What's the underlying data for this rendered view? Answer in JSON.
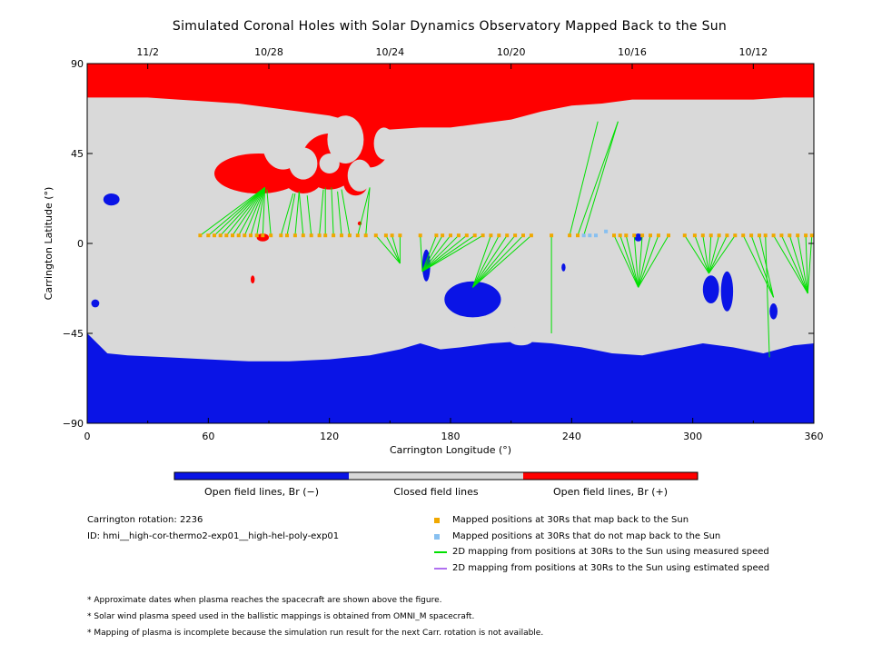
{
  "title": "Simulated Coronal Holes with Solar Dynamics Observatory Mapped Back to the Sun",
  "colors": {
    "open_negative": "#0a14e6",
    "closed": "#d9d9d9",
    "open_positive": "#ff0000",
    "mapped_yes": "#f0a800",
    "mapped_no": "#88c0f0",
    "measured_speed": "#00e000",
    "estimated_speed": "#b070f0"
  },
  "chart_data": {
    "type": "heatmap",
    "title": "Simulated Coronal Holes with Solar Dynamics Observatory Mapped Back to the Sun",
    "xlabel": "Carrington Longitude (°)",
    "ylabel": "Carrington Latitude (°)",
    "xlim": [
      0,
      360
    ],
    "ylim": [
      -90,
      90
    ],
    "xticks": [
      0,
      60,
      120,
      180,
      240,
      300,
      360
    ],
    "yticks": [
      90,
      45,
      0,
      -45,
      -90
    ],
    "top_axis_dates": [
      {
        "label": "11/2",
        "lon": 30
      },
      {
        "label": "10/28",
        "lon": 90
      },
      {
        "label": "10/24",
        "lon": 150
      },
      {
        "label": "10/20",
        "lon": 210
      },
      {
        "label": "10/16",
        "lon": 270
      },
      {
        "label": "10/12",
        "lon": 330
      }
    ],
    "colorbar": [
      "Open field lines, Br (−)",
      "Closed field lines",
      "Open field lines, Br (+)"
    ],
    "north_boundary": [
      [
        0,
        73
      ],
      [
        15,
        73
      ],
      [
        30,
        73
      ],
      [
        45,
        72
      ],
      [
        60,
        71
      ],
      [
        75,
        70
      ],
      [
        90,
        68
      ],
      [
        105,
        66
      ],
      [
        120,
        64
      ],
      [
        135,
        60
      ],
      [
        150,
        57
      ],
      [
        165,
        58
      ],
      [
        180,
        58
      ],
      [
        195,
        60
      ],
      [
        210,
        62
      ],
      [
        225,
        66
      ],
      [
        240,
        69
      ],
      [
        255,
        70
      ],
      [
        270,
        72
      ],
      [
        285,
        72
      ],
      [
        300,
        72
      ],
      [
        315,
        72
      ],
      [
        330,
        72
      ],
      [
        345,
        73
      ],
      [
        360,
        73
      ]
    ],
    "south_boundary": [
      [
        0,
        -45
      ],
      [
        10,
        -55
      ],
      [
        20,
        -56
      ],
      [
        40,
        -57
      ],
      [
        60,
        -58
      ],
      [
        80,
        -59
      ],
      [
        100,
        -59
      ],
      [
        120,
        -58
      ],
      [
        140,
        -56
      ],
      [
        155,
        -53
      ],
      [
        165,
        -50
      ],
      [
        175,
        -53
      ],
      [
        185,
        -52
      ],
      [
        200,
        -50
      ],
      [
        215,
        -49
      ],
      [
        230,
        -50
      ],
      [
        245,
        -52
      ],
      [
        260,
        -55
      ],
      [
        275,
        -56
      ],
      [
        290,
        -53
      ],
      [
        305,
        -50
      ],
      [
        320,
        -52
      ],
      [
        335,
        -55
      ],
      [
        350,
        -51
      ],
      [
        360,
        -50
      ]
    ],
    "positive_islands": [
      {
        "lon": 97,
        "lat": 49,
        "rlon": 10,
        "rlat": 12
      },
      {
        "lon": 107,
        "lat": 40,
        "rlon": 7,
        "rlat": 8
      },
      {
        "lon": 128,
        "lat": 52,
        "rlon": 9,
        "rlat": 12
      },
      {
        "lon": 135,
        "lat": 34,
        "rlon": 6,
        "rlat": 8
      },
      {
        "lon": 147,
        "lat": 50,
        "rlon": 5,
        "rlat": 8
      },
      {
        "lon": 120,
        "lat": 40,
        "rlon": 5,
        "rlat": 5
      }
    ],
    "positive_patches": [
      {
        "lon": 85,
        "lat": 35,
        "rlon": 22,
        "rlat": 10
      },
      {
        "lon": 107,
        "lat": 34,
        "rlon": 10,
        "rlat": 9
      },
      {
        "lon": 120,
        "lat": 41,
        "rlon": 14,
        "rlat": 14
      },
      {
        "lon": 133,
        "lat": 30,
        "rlon": 6,
        "rlat": 6
      },
      {
        "lon": 140,
        "lat": 50,
        "rlon": 10,
        "rlat": 12
      },
      {
        "lon": 87,
        "lat": 3,
        "rlon": 3,
        "rlat": 2
      },
      {
        "lon": 135,
        "lat": 10,
        "rlon": 1,
        "rlat": 1
      },
      {
        "lon": 82,
        "lat": -18,
        "rlon": 1,
        "rlat": 2
      }
    ],
    "negative_patches": [
      {
        "lon": 12,
        "lat": 22,
        "rlon": 4,
        "rlat": 3
      },
      {
        "lon": 168,
        "lat": -11,
        "rlon": 2,
        "rlat": 8
      },
      {
        "lon": 191,
        "lat": -28,
        "rlon": 14,
        "rlat": 9
      },
      {
        "lon": 309,
        "lat": -23,
        "rlon": 4,
        "rlat": 7
      },
      {
        "lon": 317,
        "lat": -24,
        "rlon": 3,
        "rlat": 10
      },
      {
        "lon": 340,
        "lat": -34,
        "rlon": 2,
        "rlat": 4
      },
      {
        "lon": 4,
        "lat": -30,
        "rlon": 2,
        "rlat": 2
      },
      {
        "lon": 273,
        "lat": 3,
        "rlon": 2,
        "rlat": 2
      },
      {
        "lon": 236,
        "lat": -12,
        "rlon": 1,
        "rlat": 2
      }
    ],
    "negative_islands": [
      {
        "lon": 180,
        "lat": -44,
        "rlon": 12,
        "rlat": 5
      },
      {
        "lon": 205,
        "lat": -45,
        "rlon": 10,
        "rlat": 4
      },
      {
        "lon": 215,
        "lat": -48,
        "rlon": 6,
        "rlat": 3
      },
      {
        "lon": 292,
        "lat": -48,
        "rlon": 8,
        "rlat": 3
      }
    ],
    "mappings": [
      {
        "lon": 56,
        "lat": 4,
        "flon": 88,
        "flat": 28,
        "mapped": true
      },
      {
        "lon": 60,
        "lat": 4,
        "flon": 88,
        "flat": 28,
        "mapped": true
      },
      {
        "lon": 63,
        "lat": 4,
        "flon": 88,
        "flat": 28,
        "mapped": true
      },
      {
        "lon": 66,
        "lat": 4,
        "flon": 88,
        "flat": 28,
        "mapped": true
      },
      {
        "lon": 69,
        "lat": 4,
        "flon": 88,
        "flat": 28,
        "mapped": true
      },
      {
        "lon": 72,
        "lat": 4,
        "flon": 88,
        "flat": 28,
        "mapped": true
      },
      {
        "lon": 75,
        "lat": 4,
        "flon": 88,
        "flat": 28,
        "mapped": true
      },
      {
        "lon": 78,
        "lat": 4,
        "flon": 88,
        "flat": 28,
        "mapped": true
      },
      {
        "lon": 81,
        "lat": 4,
        "flon": 88,
        "flat": 28,
        "mapped": true
      },
      {
        "lon": 84,
        "lat": 4,
        "flon": 88,
        "flat": 28,
        "mapped": true
      },
      {
        "lon": 87,
        "lat": 4,
        "flon": 88,
        "flat": 28,
        "mapped": true
      },
      {
        "lon": 91,
        "lat": 4,
        "flon": 89,
        "flat": 27,
        "mapped": true
      },
      {
        "lon": 96,
        "lat": 4,
        "flon": 102,
        "flat": 25,
        "mapped": true
      },
      {
        "lon": 99,
        "lat": 4,
        "flon": 103,
        "flat": 25,
        "mapped": true
      },
      {
        "lon": 103,
        "lat": 4,
        "flon": 105,
        "flat": 26,
        "mapped": true
      },
      {
        "lon": 107,
        "lat": 4,
        "flon": 105,
        "flat": 26,
        "mapped": true
      },
      {
        "lon": 111,
        "lat": 4,
        "flon": 109,
        "flat": 24,
        "mapped": true
      },
      {
        "lon": 115,
        "lat": 4,
        "flon": 117,
        "flat": 27,
        "mapped": true
      },
      {
        "lon": 118,
        "lat": 4,
        "flon": 118,
        "flat": 28,
        "mapped": true
      },
      {
        "lon": 122,
        "lat": 4,
        "flon": 121,
        "flat": 28,
        "mapped": true
      },
      {
        "lon": 126,
        "lat": 4,
        "flon": 124,
        "flat": 26,
        "mapped": true
      },
      {
        "lon": 130,
        "lat": 4,
        "flon": 126,
        "flat": 27,
        "mapped": true
      },
      {
        "lon": 134,
        "lat": 4,
        "flon": 140,
        "flat": 28,
        "mapped": true
      },
      {
        "lon": 138,
        "lat": 4,
        "flon": 140,
        "flat": 28,
        "mapped": true
      },
      {
        "lon": 143,
        "lat": 4,
        "flon": 155,
        "flat": -10,
        "mapped": true
      },
      {
        "lon": 148,
        "lat": 4,
        "flon": 155,
        "flat": -10,
        "mapped": true
      },
      {
        "lon": 151,
        "lat": 4,
        "flon": 155,
        "flat": -10,
        "mapped": true
      },
      {
        "lon": 155,
        "lat": 4,
        "flon": 155,
        "flat": -10,
        "mapped": true
      },
      {
        "lon": 165,
        "lat": 4,
        "flon": 166,
        "flat": -14,
        "mapped": true
      },
      {
        "lon": 173,
        "lat": 4,
        "flon": 166,
        "flat": -14,
        "mapped": true
      },
      {
        "lon": 176,
        "lat": 4,
        "flon": 166,
        "flat": -14,
        "mapped": true
      },
      {
        "lon": 180,
        "lat": 4,
        "flon": 166,
        "flat": -14,
        "mapped": true
      },
      {
        "lon": 184,
        "lat": 4,
        "flon": 166,
        "flat": -14,
        "mapped": true
      },
      {
        "lon": 188,
        "lat": 4,
        "flon": 166,
        "flat": -14,
        "mapped": true
      },
      {
        "lon": 192,
        "lat": 4,
        "flon": 166,
        "flat": -14,
        "mapped": true
      },
      {
        "lon": 196,
        "lat": 4,
        "flon": 166,
        "flat": -14,
        "mapped": true
      },
      {
        "lon": 200,
        "lat": 4,
        "flon": 191,
        "flat": -22,
        "mapped": true
      },
      {
        "lon": 204,
        "lat": 4,
        "flon": 191,
        "flat": -22,
        "mapped": true
      },
      {
        "lon": 208,
        "lat": 4,
        "flon": 191,
        "flat": -22,
        "mapped": true
      },
      {
        "lon": 212,
        "lat": 4,
        "flon": 191,
        "flat": -22,
        "mapped": true
      },
      {
        "lon": 216,
        "lat": 4,
        "flon": 191,
        "flat": -22,
        "mapped": true
      },
      {
        "lon": 220,
        "lat": 4,
        "flon": 191,
        "flat": -22,
        "mapped": true
      },
      {
        "lon": 230,
        "lat": 4,
        "flon": 230,
        "flat": -45,
        "mapped": true
      },
      {
        "lon": 239,
        "lat": 4,
        "flon": 253,
        "flat": 61,
        "mapped": true
      },
      {
        "lon": 243,
        "lat": 4,
        "flon": 263,
        "flat": 61,
        "mapped": true
      },
      {
        "lon": 246,
        "lat": 4,
        "flon": 263,
        "flat": 61,
        "mapped": false
      },
      {
        "lon": 249,
        "lat": 4,
        "mapped": false
      },
      {
        "lon": 252,
        "lat": 4,
        "mapped": false
      },
      {
        "lon": 257,
        "lat": 6,
        "mapped": false
      },
      {
        "lon": 261,
        "lat": 4,
        "flon": 273,
        "flat": -22,
        "mapped": true
      },
      {
        "lon": 264,
        "lat": 4,
        "flon": 273,
        "flat": -22,
        "mapped": true
      },
      {
        "lon": 267,
        "lat": 4,
        "flon": 273,
        "flat": -22,
        "mapped": true
      },
      {
        "lon": 271,
        "lat": 4,
        "flon": 273,
        "flat": -22,
        "mapped": true
      },
      {
        "lon": 275,
        "lat": 4,
        "flon": 273,
        "flat": -22,
        "mapped": true
      },
      {
        "lon": 279,
        "lat": 4,
        "flon": 273,
        "flat": -22,
        "mapped": true
      },
      {
        "lon": 283,
        "lat": 4,
        "flon": 273,
        "flat": -22,
        "mapped": true
      },
      {
        "lon": 288,
        "lat": 4,
        "flon": 273,
        "flat": -22,
        "mapped": true
      },
      {
        "lon": 296,
        "lat": 4,
        "flon": 308,
        "flat": -15,
        "mapped": true
      },
      {
        "lon": 301,
        "lat": 4,
        "flon": 308,
        "flat": -15,
        "mapped": true
      },
      {
        "lon": 305,
        "lat": 4,
        "flon": 308,
        "flat": -15,
        "mapped": true
      },
      {
        "lon": 309,
        "lat": 4,
        "flon": 308,
        "flat": -15,
        "mapped": true
      },
      {
        "lon": 313,
        "lat": 4,
        "flon": 308,
        "flat": -15,
        "mapped": true
      },
      {
        "lon": 317,
        "lat": 4,
        "flon": 308,
        "flat": -15,
        "mapped": true
      },
      {
        "lon": 321,
        "lat": 4,
        "flon": 308,
        "flat": -15,
        "mapped": true
      },
      {
        "lon": 325,
        "lat": 4,
        "flon": 340,
        "flat": -27,
        "mapped": true
      },
      {
        "lon": 329,
        "lat": 4,
        "flon": 340,
        "flat": -27,
        "mapped": true
      },
      {
        "lon": 333,
        "lat": 4,
        "flon": 340,
        "flat": -27,
        "mapped": true
      },
      {
        "lon": 336,
        "lat": 4,
        "flon": 338,
        "flat": -57,
        "mapped": true
      },
      {
        "lon": 340,
        "lat": 4,
        "flon": 357,
        "flat": -25,
        "mapped": true
      },
      {
        "lon": 344,
        "lat": 4,
        "flon": 357,
        "flat": -25,
        "mapped": true
      },
      {
        "lon": 348,
        "lat": 4,
        "flon": 357,
        "flat": -25,
        "mapped": true
      },
      {
        "lon": 352,
        "lat": 4,
        "flon": 357,
        "flat": -25,
        "mapped": true
      },
      {
        "lon": 356,
        "lat": 4,
        "flon": 357,
        "flat": -25,
        "mapped": true
      },
      {
        "lon": 359,
        "lat": 4,
        "flon": 357,
        "flat": -25,
        "mapped": true
      }
    ]
  },
  "info": {
    "rotation": "Carrington rotation: 2236",
    "id": "ID: hmi__high-cor-thermo2-exp01__high-hel-poly-exp01"
  },
  "legend": [
    {
      "kind": "square",
      "color_key": "mapped_yes",
      "label": "Mapped positions at 30Rs that map back to the Sun"
    },
    {
      "kind": "square",
      "color_key": "mapped_no",
      "label": "Mapped positions at 30Rs that do not map back to the Sun"
    },
    {
      "kind": "line",
      "color_key": "measured_speed",
      "label": "2D mapping from positions at 30Rs to the Sun using measured speed"
    },
    {
      "kind": "line",
      "color_key": "estimated_speed",
      "label": "2D mapping from positions at 30Rs to the Sun using estimated speed"
    }
  ],
  "notes": [
    "* Approximate dates when plasma reaches the spacecraft are shown above the figure.",
    "* Solar wind plasma speed used in the ballistic mappings is obtained from OMNI_M spacecraft.",
    "* Mapping of plasma is incomplete because the simulation run result for the next Carr. rotation is not available."
  ]
}
